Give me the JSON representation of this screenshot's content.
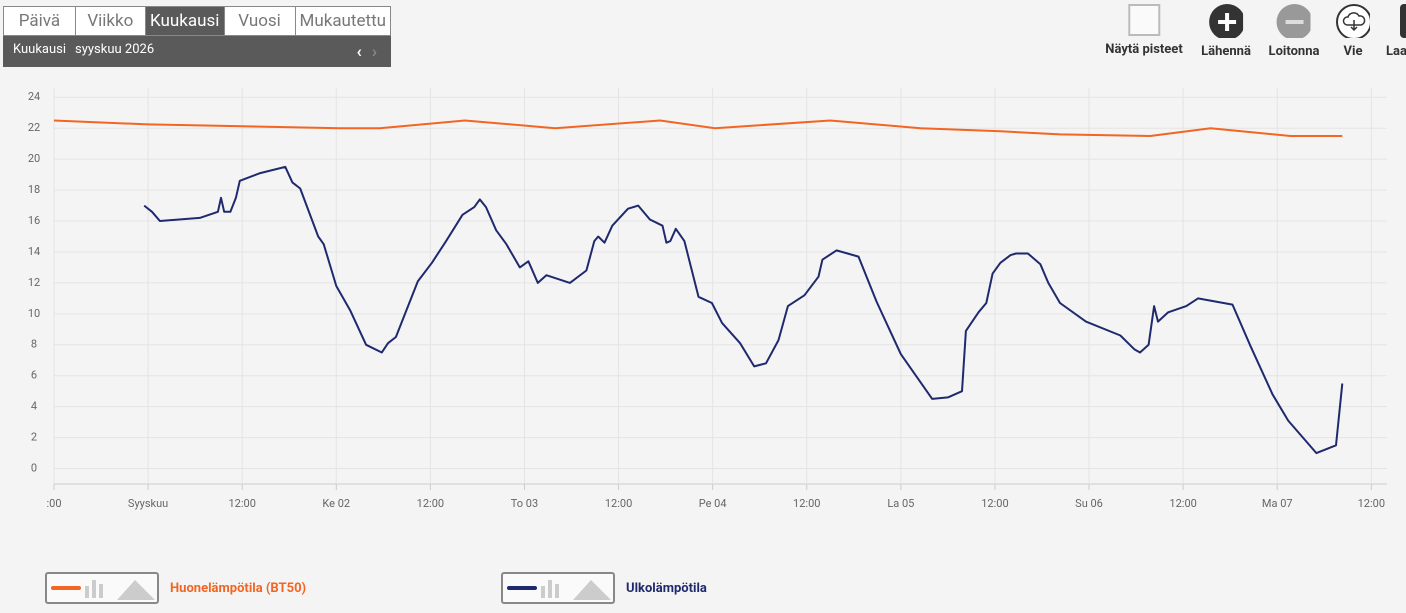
{
  "tabs": [
    "Päivä",
    "Viikko",
    "Kuukausi",
    "Vuosi",
    "Mukautettu"
  ],
  "active_tab": 2,
  "period": {
    "label": "Kuukausi",
    "value": "syyskuu 2026"
  },
  "toolbar": [
    "Näytä pisteet",
    "Lähennä",
    "Loitonna",
    "Vie",
    "Laa"
  ],
  "chart_data": {
    "type": "line",
    "xlim": [
      -12,
      158
    ],
    "ylim": [
      -1,
      24.6
    ],
    "grid": true,
    "xticks": [
      {
        "value": -12,
        "label": ":00"
      },
      {
        "value": 0,
        "label": "Syyskuu"
      },
      {
        "value": 12,
        "label": "12:00"
      },
      {
        "value": 24,
        "label": "Ke 02"
      },
      {
        "value": 36,
        "label": "12:00"
      },
      {
        "value": 48,
        "label": "To 03"
      },
      {
        "value": 60,
        "label": "12:00"
      },
      {
        "value": 72,
        "label": "Pe 04"
      },
      {
        "value": 84,
        "label": "12:00"
      },
      {
        "value": 96,
        "label": "La 05"
      },
      {
        "value": 108,
        "label": "12:00"
      },
      {
        "value": 120,
        "label": "Su 06"
      },
      {
        "value": 132,
        "label": "12:00"
      },
      {
        "value": 144,
        "label": "Ma 07"
      },
      {
        "value": 156,
        "label": "12:00"
      }
    ],
    "yticks": [
      0,
      2,
      4,
      6,
      8,
      10,
      12,
      14,
      16,
      18,
      20,
      22,
      24
    ],
    "series": [
      {
        "name": "Huonelämpötila (BT50)",
        "color": "#f26522",
        "x": [
          -12,
          0,
          24.5,
          29.6,
          40.4,
          51.9,
          65.3,
          72.3,
          87,
          98.5,
          108.7,
          116.3,
          127.8,
          135.5,
          145.7,
          152.3
        ],
        "values": [
          22.5,
          22.25,
          22.0,
          22.0,
          22.5,
          22.0,
          22.5,
          22.0,
          22.5,
          22.0,
          21.8,
          21.6,
          21.5,
          22.0,
          21.5,
          21.5
        ]
      },
      {
        "name": "Ulkolämpötila",
        "color": "#1f2a6e",
        "x": [
          -0.5,
          0.5,
          1.5,
          6.6,
          8.9,
          9.3,
          9.7,
          10.5,
          11.2,
          11.7,
          14.3,
          17.5,
          18.4,
          19.4,
          21.7,
          22.4,
          24.0,
          25.8,
          27.8,
          29.8,
          30.6,
          31.6,
          34.4,
          36.2,
          38.0,
          40.1,
          41.6,
          42.3,
          43.1,
          44.4,
          45.7,
          47.4,
          48.5,
          49.7,
          50.8,
          53.8,
          55.9,
          56.9,
          57.4,
          58.2,
          59.2,
          61.2,
          62.5,
          64.0,
          65.6,
          66.1,
          66.6,
          67.3,
          68.4,
          70.2,
          71.9,
          73.2,
          75.5,
          77.3,
          78.8,
          80.4,
          81.6,
          83.7,
          85.5,
          86.0,
          87.8,
          90.6,
          92.9,
          96.0,
          98.2,
          100.0,
          102.0,
          103.8,
          104.3,
          105.9,
          106.9,
          107.7,
          108.7,
          110.0,
          110.7,
          112.2,
          113.8,
          114.8,
          116.3,
          119.6,
          124.0,
          125.8,
          126.5,
          127.6,
          128.3,
          128.8,
          130.1,
          132.4,
          133.9,
          138.3,
          140.6,
          143.4,
          145.4,
          149.0,
          151.5,
          152.3
        ],
        "values": [
          17.0,
          16.6,
          16.0,
          16.2,
          16.6,
          17.5,
          16.6,
          16.6,
          17.5,
          18.6,
          19.1,
          19.5,
          18.5,
          18.1,
          15.0,
          14.5,
          11.8,
          10.2,
          8.0,
          7.5,
          8.1,
          8.5,
          12.1,
          13.3,
          14.7,
          16.4,
          16.9,
          17.4,
          16.9,
          15.4,
          14.5,
          13.0,
          13.4,
          12.0,
          12.5,
          12.0,
          12.8,
          14.7,
          15.0,
          14.6,
          15.7,
          16.8,
          17.0,
          16.1,
          15.7,
          14.6,
          14.7,
          15.5,
          14.7,
          11.1,
          10.7,
          9.4,
          8.1,
          6.6,
          6.8,
          8.3,
          10.5,
          11.2,
          12.4,
          13.5,
          14.1,
          13.7,
          10.8,
          7.4,
          5.8,
          4.5,
          4.6,
          5.0,
          8.9,
          10.1,
          10.7,
          12.6,
          13.3,
          13.8,
          13.9,
          13.9,
          13.2,
          12.0,
          10.7,
          9.5,
          8.6,
          7.7,
          7.5,
          8.0,
          10.5,
          9.5,
          10.1,
          10.5,
          11.0,
          10.6,
          7.9,
          4.8,
          3.1,
          1.0,
          1.5,
          5.5
        ]
      }
    ]
  }
}
